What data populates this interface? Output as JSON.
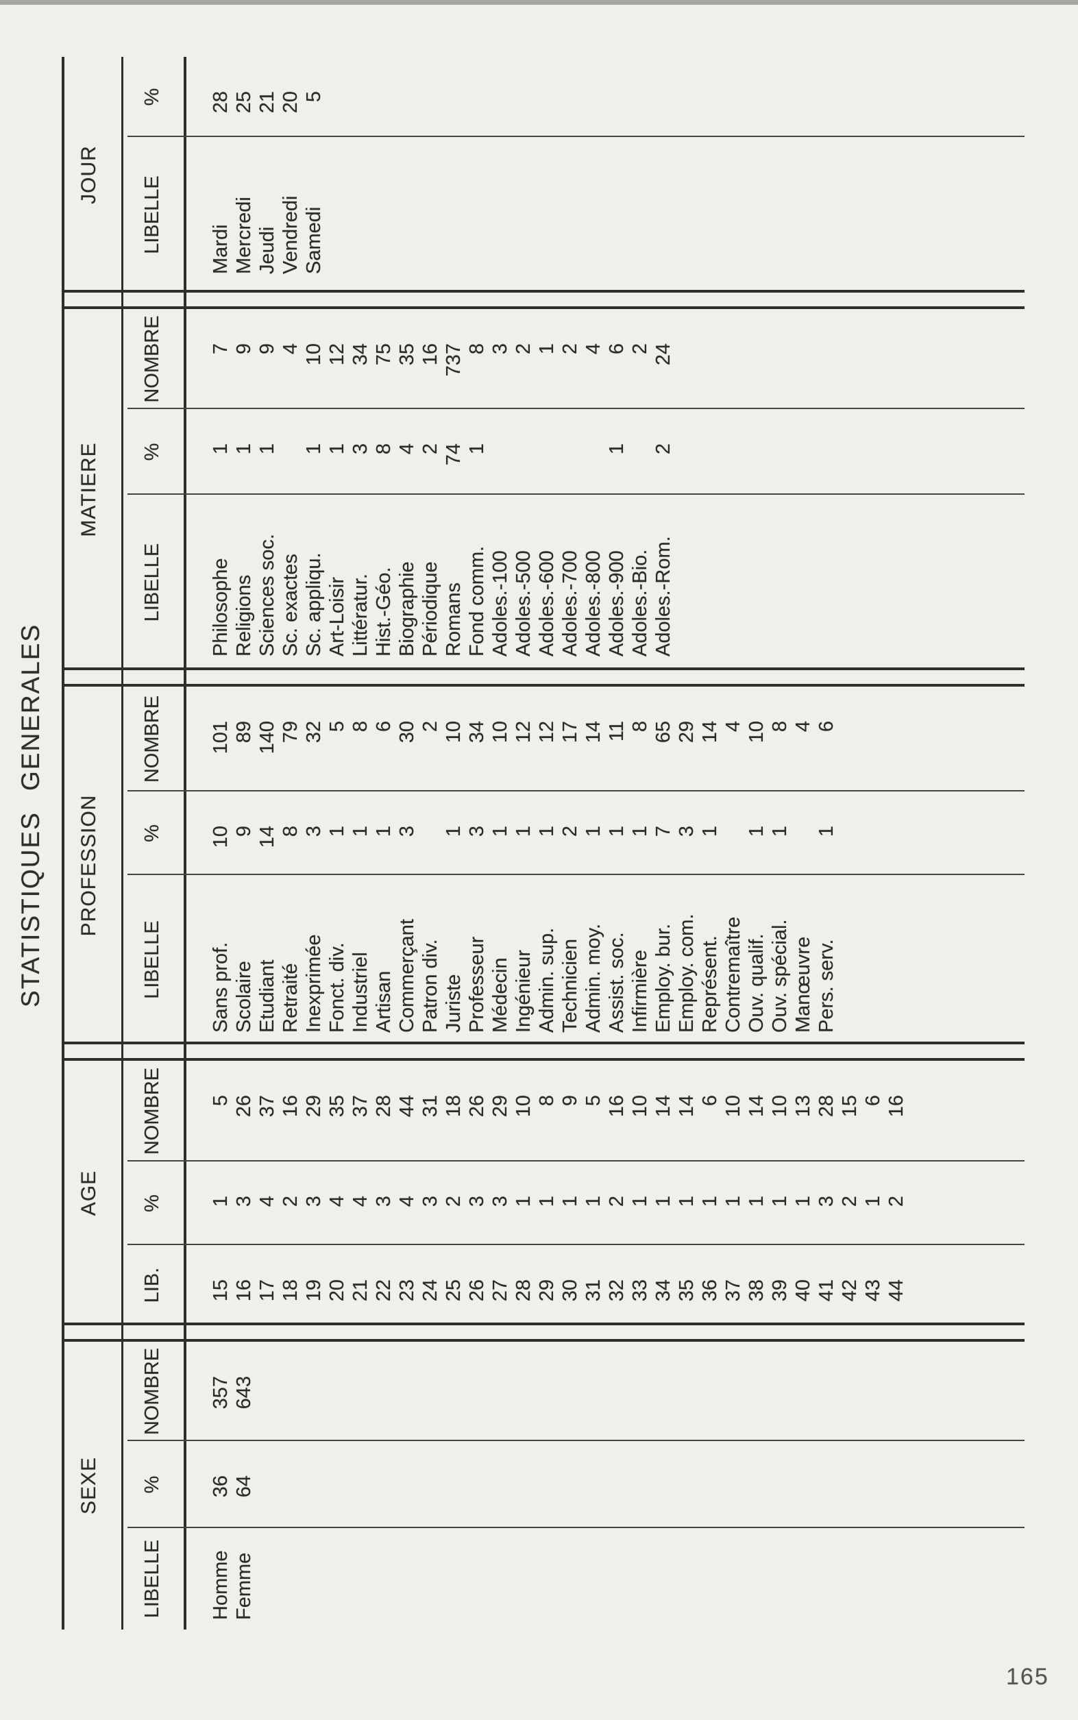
{
  "page": {
    "title": "STATISTIQUES GENERALES",
    "number": "165"
  },
  "headers": {
    "libelle": "LIBELLE",
    "lib": "LIB.",
    "pct": "%",
    "nombre": "NOMBRE"
  },
  "sections": [
    {
      "name": "SEXE",
      "rows": [
        [
          "Homme",
          "36",
          "357"
        ],
        [
          "Femme",
          "64",
          "643"
        ]
      ]
    },
    {
      "name": "AGE",
      "rows": [
        [
          "15",
          "1",
          "5"
        ],
        [
          "16",
          "3",
          "26"
        ],
        [
          "17",
          "4",
          "37"
        ],
        [
          "18",
          "2",
          "16"
        ],
        [
          "19",
          "3",
          "29"
        ],
        [
          "20",
          "4",
          "35"
        ],
        [
          "21",
          "4",
          "37"
        ],
        [
          "22",
          "3",
          "28"
        ],
        [
          "23",
          "4",
          "44"
        ],
        [
          "24",
          "3",
          "31"
        ],
        [
          "25",
          "2",
          "18"
        ],
        [
          "26",
          "3",
          "26"
        ],
        [
          "27",
          "3",
          "29"
        ],
        [
          "28",
          "1",
          "10"
        ],
        [
          "29",
          "1",
          "8"
        ],
        [
          "30",
          "1",
          "9"
        ],
        [
          "31",
          "1",
          "5"
        ],
        [
          "32",
          "2",
          "16"
        ],
        [
          "33",
          "1",
          "10"
        ],
        [
          "34",
          "1",
          "14"
        ],
        [
          "35",
          "1",
          "14"
        ],
        [
          "36",
          "1",
          "6"
        ],
        [
          "37",
          "1",
          "10"
        ],
        [
          "38",
          "1",
          "14"
        ],
        [
          "39",
          "1",
          "10"
        ],
        [
          "40",
          "1",
          "13"
        ],
        [
          "41",
          "3",
          "28"
        ],
        [
          "42",
          "2",
          "15"
        ],
        [
          "43",
          "1",
          "6"
        ],
        [
          "44",
          "2",
          "16"
        ]
      ]
    },
    {
      "name": "PROFESSION",
      "rows": [
        [
          "Sans prof.",
          "10",
          "101"
        ],
        [
          "Scolaire",
          "9",
          "89"
        ],
        [
          "Etudiant",
          "14",
          "140"
        ],
        [
          "Retraité",
          "8",
          "79"
        ],
        [
          "Inexprimée",
          "3",
          "32"
        ],
        [
          "Fonct. div.",
          "1",
          "5"
        ],
        [
          "Industriel",
          "1",
          "8"
        ],
        [
          "Artisan",
          "1",
          "6"
        ],
        [
          "Commerçant",
          "3",
          "30"
        ],
        [
          "Patron div.",
          "",
          "2"
        ],
        [
          "Juriste",
          "1",
          "10"
        ],
        [
          "Professeur",
          "3",
          "34"
        ],
        [
          "Médecin",
          "1",
          "10"
        ],
        [
          "Ingénieur",
          "1",
          "12"
        ],
        [
          "Admin. sup.",
          "1",
          "12"
        ],
        [
          "Technicien",
          "2",
          "17"
        ],
        [
          "Admin. moy.",
          "1",
          "14"
        ],
        [
          "Assist. soc.",
          "1",
          "11"
        ],
        [
          "Infirmière",
          "1",
          "8"
        ],
        [
          "Employ. bur.",
          "7",
          "65"
        ],
        [
          "Employ. com.",
          "3",
          "29"
        ],
        [
          "Représent.",
          "1",
          "14"
        ],
        [
          "Contremaître",
          "",
          "4"
        ],
        [
          "Ouv. qualif.",
          "1",
          "10"
        ],
        [
          "Ouv. spécial.",
          "1",
          "8"
        ],
        [
          "Manœuvre",
          "",
          "4"
        ],
        [
          "Pers. serv.",
          "1",
          "6"
        ]
      ]
    },
    {
      "name": "MATIERE",
      "rows": [
        [
          "Philosophe",
          "1",
          "7"
        ],
        [
          "Religions",
          "1",
          "9"
        ],
        [
          "Sciences soc.",
          "1",
          "9"
        ],
        [
          "Sc. exactes",
          "",
          "4"
        ],
        [
          "Sc. appliqu.",
          "1",
          "10"
        ],
        [
          "Art-Loisir",
          "1",
          "12"
        ],
        [
          "Littératur.",
          "3",
          "34"
        ],
        [
          "Hist.-Géo.",
          "8",
          "75"
        ],
        [
          "Biographie",
          "4",
          "35"
        ],
        [
          "Périodique",
          "2",
          "16"
        ],
        [
          "Romans",
          "74",
          "737"
        ],
        [
          "Fond comm.",
          "1",
          "8"
        ],
        [
          "Adoles.-100",
          "",
          "3"
        ],
        [
          "Adoles.-500",
          "",
          "2"
        ],
        [
          "Adoles.-600",
          "",
          "1"
        ],
        [
          "Adoles.-700",
          "",
          "2"
        ],
        [
          "Adoles.-800",
          "",
          "4"
        ],
        [
          "Adoles.-900",
          "1",
          "6"
        ],
        [
          "Adoles.-Bio.",
          "",
          "2"
        ],
        [
          "Adoles.-Rom.",
          "2",
          "24"
        ]
      ]
    },
    {
      "name": "JOUR",
      "rows": [
        [
          "Mardi",
          "28"
        ],
        [
          "Mercredi",
          "25"
        ],
        [
          "Jeudi",
          "21"
        ],
        [
          "Vendredi",
          "20"
        ],
        [
          "Samedi",
          "5"
        ]
      ]
    }
  ]
}
